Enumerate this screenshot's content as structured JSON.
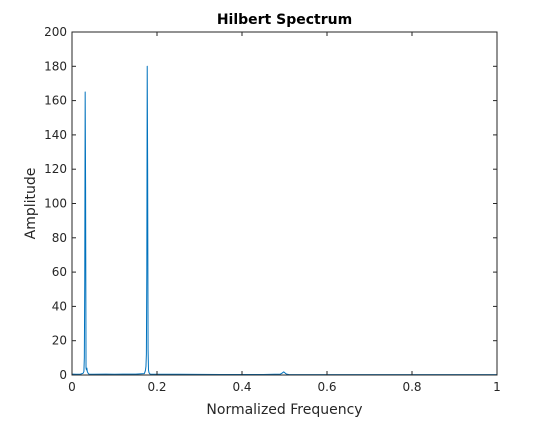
{
  "chart_data": {
    "type": "line",
    "title": "Hilbert Spectrum",
    "xlabel": "Normalized Frequency",
    "ylabel": "Amplitude",
    "xlim": [
      0,
      1
    ],
    "ylim": [
      0,
      200
    ],
    "xticks": [
      0,
      0.2,
      0.4,
      0.6,
      0.8,
      1
    ],
    "xtick_labels": [
      "0",
      "0.2",
      "0.4",
      "0.6",
      "0.8",
      "1"
    ],
    "yticks": [
      0,
      20,
      40,
      60,
      80,
      100,
      120,
      140,
      160,
      180,
      200
    ],
    "ytick_labels": [
      "0",
      "20",
      "40",
      "60",
      "80",
      "100",
      "120",
      "140",
      "160",
      "180",
      "200"
    ],
    "grid": false,
    "box": true,
    "series": [
      {
        "color": "#0072BD",
        "x": [
          0,
          0.01,
          0.02,
          0.026,
          0.028,
          0.029,
          0.03,
          0.031,
          0.032,
          0.033,
          0.034,
          0.035,
          0.036,
          0.038,
          0.04,
          0.05,
          0.08,
          0.1,
          0.12,
          0.15,
          0.17,
          0.172,
          0.173,
          0.174,
          0.175,
          0.176,
          0.177,
          0.178,
          0.179,
          0.18,
          0.181,
          0.182,
          0.184,
          0.19,
          0.25,
          0.35,
          0.45,
          0.49,
          0.495,
          0.498,
          0.5,
          0.502,
          0.505,
          0.51,
          0.6,
          0.7,
          0.8,
          0.9,
          1.0
        ],
        "y": [
          0.5,
          0.4,
          0.5,
          1.0,
          2.0,
          10,
          55,
          165,
          110,
          4,
          3,
          4,
          2,
          1,
          0.5,
          0.4,
          0.5,
          0.4,
          0.5,
          0.5,
          0.8,
          2,
          3,
          5,
          12,
          60,
          180,
          120,
          15,
          3,
          1.5,
          1,
          0.5,
          0.4,
          0.4,
          0.3,
          0.3,
          0.5,
          1.2,
          1.8,
          1.5,
          1.0,
          0.5,
          0.3,
          0.2,
          0.2,
          0.2,
          0.2,
          0.2
        ]
      }
    ]
  }
}
